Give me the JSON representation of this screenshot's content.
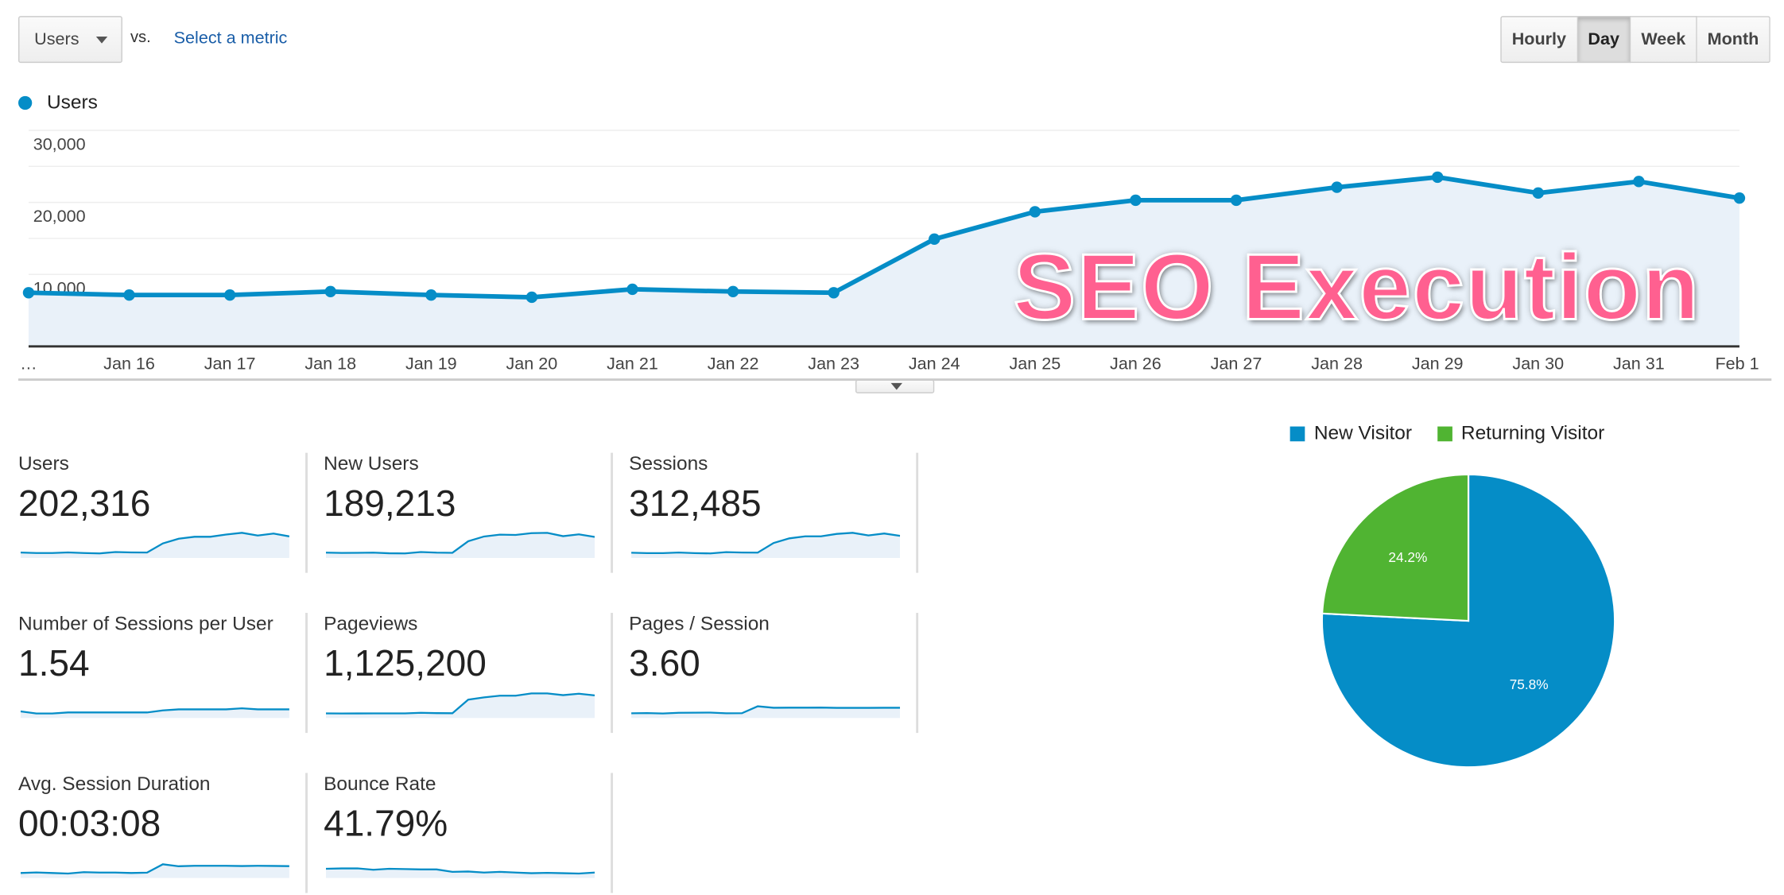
{
  "toolbar": {
    "metric_selected": "Users",
    "vs_label": "vs.",
    "compare_link": "Select a metric",
    "periods": [
      {
        "label": "Hourly",
        "active": false
      },
      {
        "label": "Day",
        "active": true
      },
      {
        "label": "Week",
        "active": false
      },
      {
        "label": "Month",
        "active": false
      }
    ]
  },
  "overlay_text": "SEO Execution",
  "colors": {
    "series": "#058dc7",
    "fill": "#e9f1f9",
    "returning": "#50b432",
    "overlay": "#ff6090"
  },
  "chart_data": [
    {
      "type": "area",
      "legend": [
        {
          "name": "Users"
        }
      ],
      "x": [
        "…",
        "Jan 16",
        "Jan 17",
        "Jan 18",
        "Jan 19",
        "Jan 20",
        "Jan 21",
        "Jan 22",
        "Jan 23",
        "Jan 24",
        "Jan 25",
        "Jan 26",
        "Jan 27",
        "Jan 28",
        "Jan 29",
        "Jan 30",
        "Jan 31",
        "Feb 1"
      ],
      "series": [
        {
          "name": "Users",
          "values": [
            7460,
            7140,
            7140,
            7620,
            7140,
            6830,
            7940,
            7620,
            7460,
            14900,
            18700,
            20300,
            20300,
            22100,
            23500,
            21300,
            22900,
            20600
          ]
        }
      ],
      "yticks": [
        "30,000",
        "20,000",
        "10,000"
      ],
      "ytick_values": [
        30000,
        20000,
        10000
      ],
      "ylim": [
        0,
        30000
      ],
      "grid": true
    },
    {
      "type": "pie",
      "legend_position": "top",
      "slices": [
        {
          "name": "New Visitor",
          "value": 75.8,
          "label": "75.8%",
          "color": "#058dc7"
        },
        {
          "name": "Returning Visitor",
          "value": 24.2,
          "label": "24.2%",
          "color": "#50b432"
        }
      ]
    }
  ],
  "metrics": [
    {
      "title": "Users",
      "value": "202,316",
      "spark": [
        7.5,
        7.1,
        7.1,
        7.6,
        7.1,
        6.8,
        7.9,
        7.6,
        7.5,
        14.9,
        18.7,
        20.3,
        20.3,
        22.1,
        23.5,
        21.3,
        22.9,
        20.6
      ]
    },
    {
      "title": "New Users",
      "value": "189,213",
      "spark": [
        7.0,
        6.8,
        6.9,
        7.0,
        6.6,
        6.5,
        7.4,
        7.0,
        6.9,
        14.5,
        17.6,
        18.8,
        18.6,
        19.8,
        20.0,
        17.8,
        19.0,
        17.3
      ]
    },
    {
      "title": "Sessions",
      "value": "312,485",
      "spark": [
        11,
        10.6,
        10.6,
        11.2,
        10.6,
        10.3,
        11.6,
        11.2,
        11.1,
        21,
        25.8,
        27.9,
        27.9,
        30.4,
        31.5,
        28.8,
        30.8,
        28.4
      ]
    },
    {
      "title": "Number of Sessions per User",
      "value": "1.54",
      "spark": [
        1.52,
        1.5,
        1.5,
        1.51,
        1.51,
        1.51,
        1.51,
        1.51,
        1.51,
        1.53,
        1.54,
        1.54,
        1.54,
        1.54,
        1.55,
        1.54,
        1.54,
        1.54
      ]
    },
    {
      "title": "Pageviews",
      "value": "1,125,200",
      "spark": [
        30,
        29.8,
        29.9,
        30,
        30,
        30,
        31,
        30.4,
        30.2,
        54,
        58,
        61,
        61,
        65,
        65,
        62,
        64.5,
        61.5
      ]
    },
    {
      "title": "Pages / Session",
      "value": "3.60",
      "spark": [
        3.0,
        3.02,
        2.98,
        3.05,
        3.06,
        3.07,
        3.0,
        3.01,
        3.7,
        3.55,
        3.56,
        3.56,
        3.57,
        3.54,
        3.54,
        3.54,
        3.55,
        3.55
      ]
    },
    {
      "title": "Avg. Session Duration",
      "value": "00:03:08",
      "spark": [
        2.6,
        2.65,
        2.6,
        2.55,
        2.68,
        2.64,
        2.64,
        2.6,
        2.63,
        3.4,
        3.22,
        3.26,
        3.26,
        3.26,
        3.24,
        3.26,
        3.25,
        3.23
      ]
    },
    {
      "title": "Bounce Rate",
      "value": "41.79%",
      "spark": [
        44.5,
        44.6,
        44.6,
        44.2,
        44.5,
        44.4,
        44.3,
        44.3,
        43.6,
        43.7,
        43.4,
        43.6,
        43.4,
        43.2,
        43.3,
        43.2,
        43.1,
        43.4
      ]
    }
  ]
}
